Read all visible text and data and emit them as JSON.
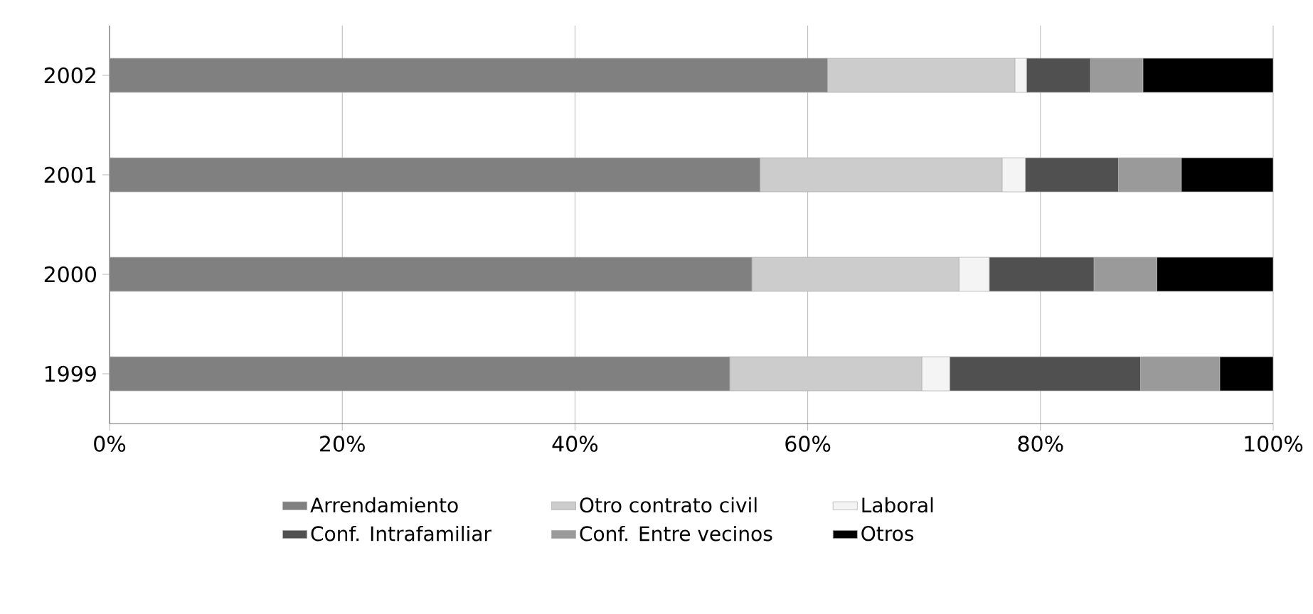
{
  "chart_data": {
    "type": "bar",
    "orientation": "horizontal",
    "stacked": true,
    "categories": [
      "2002",
      "2001",
      "2000",
      "1999"
    ],
    "series": [
      {
        "name": "Arrendamiento",
        "color": "#808080",
        "values": [
          61.7,
          55.9,
          55.2,
          53.3
        ]
      },
      {
        "name": "Otro contrato civil",
        "color": "#cccccc",
        "values": [
          16.1,
          20.8,
          17.8,
          16.5
        ]
      },
      {
        "name": "Laboral",
        "color": "#f4f4f4",
        "values": [
          1.0,
          2.0,
          2.6,
          2.4
        ]
      },
      {
        "name": "Conf. Intrafamiliar",
        "color": "#505050",
        "values": [
          5.5,
          8.0,
          9.0,
          16.4
        ]
      },
      {
        "name": "Conf. Entre vecinos",
        "color": "#9a9a9a",
        "values": [
          4.5,
          5.4,
          5.4,
          6.8
        ]
      },
      {
        "name": "Otros",
        "color": "#000000",
        "values": [
          11.2,
          7.9,
          10.0,
          4.6
        ]
      }
    ],
    "xlim": [
      0,
      100
    ],
    "xticks": [
      {
        "value": 0,
        "label": "0%"
      },
      {
        "value": 20,
        "label": "20%"
      },
      {
        "value": 40,
        "label": "40%"
      },
      {
        "value": 60,
        "label": "60%"
      },
      {
        "value": 80,
        "label": "80%"
      },
      {
        "value": 100,
        "label": "100%"
      }
    ],
    "grid": "x",
    "legend": "bottom"
  }
}
